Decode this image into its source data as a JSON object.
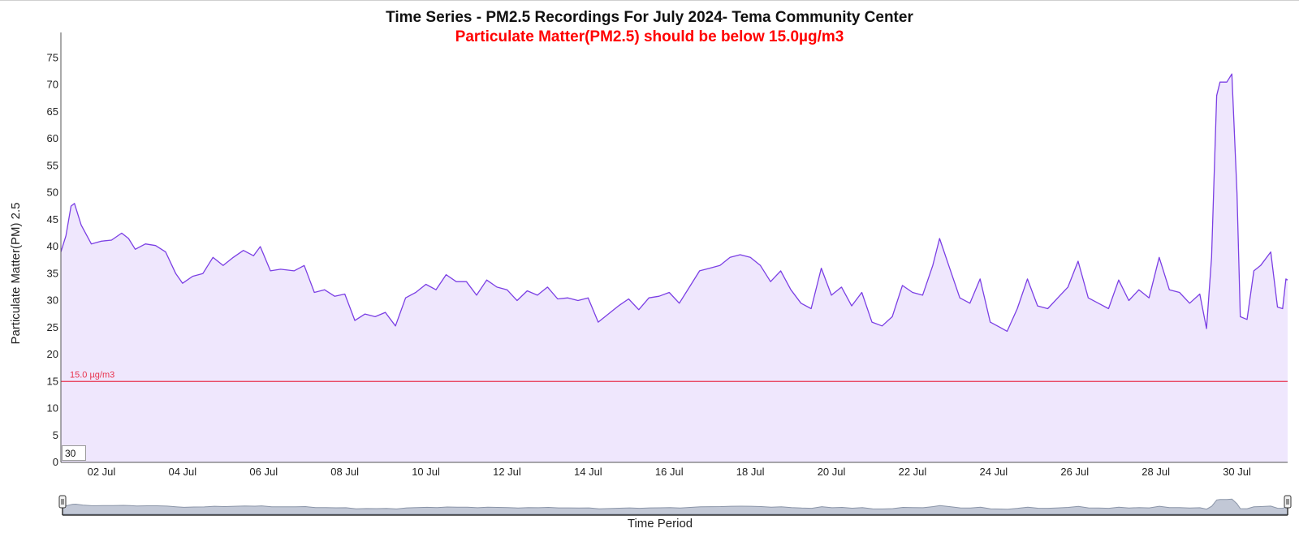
{
  "chart_data": {
    "type": "area",
    "title": "Time Series - PM2.5 Recordings For July 2024- Tema Community Center",
    "subtitle": "Particulate Matter(PM2.5) should be below 15.0µg/m3",
    "xlabel": "Time Period",
    "ylabel": "Particulate Matter(PM) 2.5",
    "xlim": [
      "2024-07-01",
      "2024-07-31 06:00"
    ],
    "ylim": [
      0,
      80
    ],
    "yticks": [
      0,
      5,
      10,
      15,
      20,
      25,
      30,
      35,
      40,
      45,
      50,
      55,
      60,
      65,
      70,
      75
    ],
    "xticks": [
      {
        "date": "2024-07-02",
        "label": "02 Jul"
      },
      {
        "date": "2024-07-04",
        "label": "04 Jul"
      },
      {
        "date": "2024-07-06",
        "label": "06 Jul"
      },
      {
        "date": "2024-07-08",
        "label": "08 Jul"
      },
      {
        "date": "2024-07-10",
        "label": "10 Jul"
      },
      {
        "date": "2024-07-12",
        "label": "12 Jul"
      },
      {
        "date": "2024-07-14",
        "label": "14 Jul"
      },
      {
        "date": "2024-07-16",
        "label": "16 Jul"
      },
      {
        "date": "2024-07-18",
        "label": "18 Jul"
      },
      {
        "date": "2024-07-20",
        "label": "20 Jul"
      },
      {
        "date": "2024-07-22",
        "label": "22 Jul"
      },
      {
        "date": "2024-07-24",
        "label": "24 Jul"
      },
      {
        "date": "2024-07-26",
        "label": "26 Jul"
      },
      {
        "date": "2024-07-28",
        "label": "28 Jul"
      },
      {
        "date": "2024-07-30",
        "label": "30 Jul"
      }
    ],
    "threshold": {
      "value": 15,
      "label": "15.0 µg/m3"
    },
    "rolling_period": "30",
    "colors": {
      "line": "#7b3fe4",
      "fill": "#efe7fd",
      "threshold": "#e8344f",
      "subtitle": "#ff0000",
      "navigator_fill": "#c2c8d6",
      "navigator_line": "#8b95a8"
    },
    "grid": false,
    "series": [
      {
        "points": [
          [
            "2024-07-01 00:00",
            39
          ],
          [
            "2024-07-01 03:00",
            42
          ],
          [
            "2024-07-01 06:00",
            47.5
          ],
          [
            "2024-07-01 08:00",
            48
          ],
          [
            "2024-07-01 12:00",
            44
          ],
          [
            "2024-07-01 18:00",
            40.5
          ],
          [
            "2024-07-02 00:00",
            41
          ],
          [
            "2024-07-02 06:00",
            41.2
          ],
          [
            "2024-07-02 12:00",
            42.5
          ],
          [
            "2024-07-02 16:00",
            41.5
          ],
          [
            "2024-07-02 20:00",
            39.5
          ],
          [
            "2024-07-03 02:00",
            40.5
          ],
          [
            "2024-07-03 08:00",
            40.2
          ],
          [
            "2024-07-03 14:00",
            39
          ],
          [
            "2024-07-03 20:00",
            35
          ],
          [
            "2024-07-04 00:00",
            33.2
          ],
          [
            "2024-07-04 06:00",
            34.5
          ],
          [
            "2024-07-04 12:00",
            35
          ],
          [
            "2024-07-04 18:00",
            38
          ],
          [
            "2024-07-05 00:00",
            36.5
          ],
          [
            "2024-07-05 06:00",
            38
          ],
          [
            "2024-07-05 12:00",
            39.3
          ],
          [
            "2024-07-05 18:00",
            38.3
          ],
          [
            "2024-07-05 22:00",
            40
          ],
          [
            "2024-07-06 04:00",
            35.5
          ],
          [
            "2024-07-06 10:00",
            35.8
          ],
          [
            "2024-07-06 18:00",
            35.5
          ],
          [
            "2024-07-07 00:00",
            36.5
          ],
          [
            "2024-07-07 06:00",
            31.5
          ],
          [
            "2024-07-07 12:00",
            32
          ],
          [
            "2024-07-07 18:00",
            30.8
          ],
          [
            "2024-07-08 00:00",
            31.2
          ],
          [
            "2024-07-08 06:00",
            26.3
          ],
          [
            "2024-07-08 12:00",
            27.5
          ],
          [
            "2024-07-08 18:00",
            27
          ],
          [
            "2024-07-09 00:00",
            27.8
          ],
          [
            "2024-07-09 06:00",
            25.3
          ],
          [
            "2024-07-09 12:00",
            30.5
          ],
          [
            "2024-07-09 18:00",
            31.5
          ],
          [
            "2024-07-10 00:00",
            33
          ],
          [
            "2024-07-10 06:00",
            32
          ],
          [
            "2024-07-10 12:00",
            34.8
          ],
          [
            "2024-07-10 18:00",
            33.5
          ],
          [
            "2024-07-11 00:00",
            33.5
          ],
          [
            "2024-07-11 06:00",
            31
          ],
          [
            "2024-07-11 12:00",
            33.8
          ],
          [
            "2024-07-11 18:00",
            32.5
          ],
          [
            "2024-07-12 00:00",
            32
          ],
          [
            "2024-07-12 06:00",
            30
          ],
          [
            "2024-07-12 12:00",
            31.8
          ],
          [
            "2024-07-12 18:00",
            31
          ],
          [
            "2024-07-13 00:00",
            32.5
          ],
          [
            "2024-07-13 06:00",
            30.3
          ],
          [
            "2024-07-13 12:00",
            30.5
          ],
          [
            "2024-07-13 18:00",
            30
          ],
          [
            "2024-07-14 00:00",
            30.5
          ],
          [
            "2024-07-14 06:00",
            26
          ],
          [
            "2024-07-14 12:00",
            27.5
          ],
          [
            "2024-07-14 18:00",
            29
          ],
          [
            "2024-07-15 00:00",
            30.3
          ],
          [
            "2024-07-15 06:00",
            28.3
          ],
          [
            "2024-07-15 12:00",
            30.5
          ],
          [
            "2024-07-15 18:00",
            30.8
          ],
          [
            "2024-07-16 00:00",
            31.5
          ],
          [
            "2024-07-16 06:00",
            29.5
          ],
          [
            "2024-07-16 12:00",
            32.5
          ],
          [
            "2024-07-16 18:00",
            35.5
          ],
          [
            "2024-07-17 00:00",
            36
          ],
          [
            "2024-07-17 06:00",
            36.5
          ],
          [
            "2024-07-17 12:00",
            38
          ],
          [
            "2024-07-17 18:00",
            38.5
          ],
          [
            "2024-07-18 00:00",
            38
          ],
          [
            "2024-07-18 06:00",
            36.5
          ],
          [
            "2024-07-18 12:00",
            33.5
          ],
          [
            "2024-07-18 18:00",
            35.5
          ],
          [
            "2024-07-19 00:00",
            32
          ],
          [
            "2024-07-19 06:00",
            29.5
          ],
          [
            "2024-07-19 12:00",
            28.5
          ],
          [
            "2024-07-19 18:00",
            36
          ],
          [
            "2024-07-20 00:00",
            31
          ],
          [
            "2024-07-20 06:00",
            32.5
          ],
          [
            "2024-07-20 12:00",
            29
          ],
          [
            "2024-07-20 18:00",
            31.5
          ],
          [
            "2024-07-21 00:00",
            26
          ],
          [
            "2024-07-21 06:00",
            25.3
          ],
          [
            "2024-07-21 12:00",
            27
          ],
          [
            "2024-07-21 18:00",
            32.8
          ],
          [
            "2024-07-22 00:00",
            31.5
          ],
          [
            "2024-07-22 06:00",
            31
          ],
          [
            "2024-07-22 12:00",
            36.5
          ],
          [
            "2024-07-22 16:00",
            41.5
          ],
          [
            "2024-07-22 22:00",
            36
          ],
          [
            "2024-07-23 04:00",
            30.5
          ],
          [
            "2024-07-23 10:00",
            29.5
          ],
          [
            "2024-07-23 16:00",
            34
          ],
          [
            "2024-07-23 22:00",
            26
          ],
          [
            "2024-07-24 04:00",
            25
          ],
          [
            "2024-07-24 08:00",
            24.3
          ],
          [
            "2024-07-24 14:00",
            28.5
          ],
          [
            "2024-07-24 20:00",
            34
          ],
          [
            "2024-07-25 02:00",
            29
          ],
          [
            "2024-07-25 08:00",
            28.5
          ],
          [
            "2024-07-25 14:00",
            30.5
          ],
          [
            "2024-07-25 20:00",
            32.5
          ],
          [
            "2024-07-26 02:00",
            37.3
          ],
          [
            "2024-07-26 08:00",
            30.5
          ],
          [
            "2024-07-26 14:00",
            29.5
          ],
          [
            "2024-07-26 20:00",
            28.5
          ],
          [
            "2024-07-27 02:00",
            33.8
          ],
          [
            "2024-07-27 08:00",
            30
          ],
          [
            "2024-07-27 14:00",
            32
          ],
          [
            "2024-07-27 20:00",
            30.5
          ],
          [
            "2024-07-28 02:00",
            38
          ],
          [
            "2024-07-28 08:00",
            32
          ],
          [
            "2024-07-28 14:00",
            31.5
          ],
          [
            "2024-07-28 20:00",
            29.5
          ],
          [
            "2024-07-29 02:00",
            31.2
          ],
          [
            "2024-07-29 06:00",
            24.8
          ],
          [
            "2024-07-29 09:00",
            38
          ],
          [
            "2024-07-29 12:00",
            68
          ],
          [
            "2024-07-29 14:00",
            70.5
          ],
          [
            "2024-07-29 18:00",
            70.5
          ],
          [
            "2024-07-29 21:00",
            72
          ],
          [
            "2024-07-30 00:00",
            50
          ],
          [
            "2024-07-30 02:00",
            27
          ],
          [
            "2024-07-30 06:00",
            26.5
          ],
          [
            "2024-07-30 10:00",
            35.5
          ],
          [
            "2024-07-30 14:00",
            36.5
          ],
          [
            "2024-07-30 20:00",
            39
          ],
          [
            "2024-07-31 00:00",
            28.8
          ],
          [
            "2024-07-31 03:00",
            28.5
          ],
          [
            "2024-07-31 05:00",
            34
          ],
          [
            "2024-07-31 06:00",
            33.8
          ]
        ]
      }
    ]
  }
}
